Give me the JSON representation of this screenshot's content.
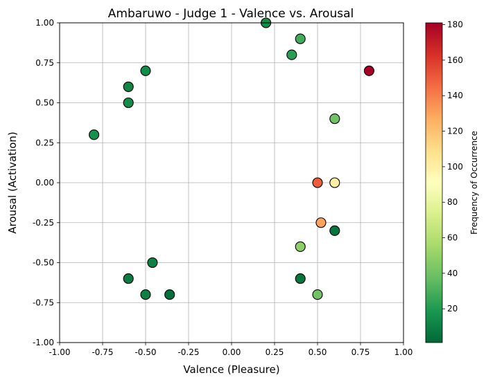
{
  "chart_data": {
    "type": "scatter",
    "title": "Ambaruwo - Judge 1 - Valence vs. Arousal",
    "xlabel": "Valence (Pleasure)",
    "ylabel": "Arousal (Activation)",
    "xlim": [
      -1.0,
      1.0
    ],
    "ylim": [
      -1.0,
      1.0
    ],
    "xticks": [
      "-1.00",
      "-0.75",
      "-0.50",
      "-0.25",
      "0.00",
      "0.25",
      "0.50",
      "0.75",
      "1.00"
    ],
    "yticks": [
      "-1.00",
      "-0.75",
      "-0.50",
      "-0.25",
      "0.00",
      "0.25",
      "0.50",
      "0.75",
      "1.00"
    ],
    "grid": true,
    "colormap": "RdYlGn_r",
    "colorbar": {
      "label": "Frequency of Occurrence",
      "range": [
        1,
        181
      ],
      "ticks": [
        "20",
        "40",
        "60",
        "80",
        "100",
        "120",
        "140",
        "160",
        "180"
      ]
    },
    "points": [
      {
        "x": 0.2,
        "y": 1.0,
        "freq": 14
      },
      {
        "x": 0.4,
        "y": 0.9,
        "freq": 28
      },
      {
        "x": 0.35,
        "y": 0.8,
        "freq": 22
      },
      {
        "x": 0.8,
        "y": 0.7,
        "freq": 181
      },
      {
        "x": -0.5,
        "y": 0.7,
        "freq": 14
      },
      {
        "x": -0.6,
        "y": 0.6,
        "freq": 12
      },
      {
        "x": -0.6,
        "y": 0.5,
        "freq": 14
      },
      {
        "x": 0.6,
        "y": 0.4,
        "freq": 40
      },
      {
        "x": -0.8,
        "y": 0.3,
        "freq": 16
      },
      {
        "x": 0.5,
        "y": 0.0,
        "freq": 150
      },
      {
        "x": 0.6,
        "y": 0.0,
        "freq": 100
      },
      {
        "x": 0.52,
        "y": -0.25,
        "freq": 130
      },
      {
        "x": 0.6,
        "y": -0.3,
        "freq": 6
      },
      {
        "x": 0.4,
        "y": -0.4,
        "freq": 48
      },
      {
        "x": -0.46,
        "y": -0.5,
        "freq": 10
      },
      {
        "x": -0.6,
        "y": -0.6,
        "freq": 8
      },
      {
        "x": 0.4,
        "y": -0.6,
        "freq": 6
      },
      {
        "x": -0.5,
        "y": -0.7,
        "freq": 10
      },
      {
        "x": -0.36,
        "y": -0.7,
        "freq": 4
      },
      {
        "x": 0.5,
        "y": -0.7,
        "freq": 40
      }
    ]
  }
}
